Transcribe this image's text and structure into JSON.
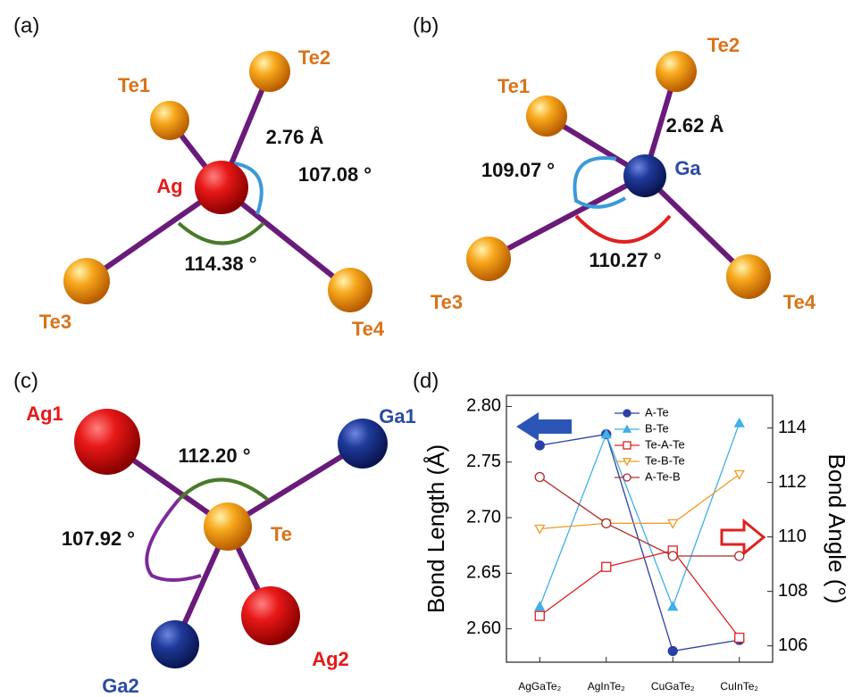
{
  "panels": [
    {
      "label": "(a)",
      "atoms": [
        "Te1",
        "Te2",
        "Ag",
        "Te3",
        "Te4"
      ],
      "bond_length": "2.76 Å",
      "angles": [
        "107.08 °",
        "114.38 °"
      ]
    },
    {
      "label": "(b)",
      "atoms": [
        "Te1",
        "Te2",
        "Ga",
        "Te3",
        "Te4"
      ],
      "bond_length": "2.62 Å",
      "angles": [
        "109.07 °",
        "110.27 °"
      ]
    },
    {
      "label": "(c)",
      "atoms": [
        "Ag1",
        "Ga1",
        "Te",
        "Ag2",
        "Ga2"
      ],
      "angles": [
        "112.20 °",
        "107.92 °"
      ]
    }
  ],
  "chart_data": {
    "type": "line",
    "panel_label": "(d)",
    "categories": [
      "AgGaTe₂",
      "AgInTe₂",
      "CuGaTe₂",
      "CuInTe₂"
    ],
    "ylabel": "Bond Length (Å)",
    "y2label": "Bond Angle (°)",
    "ylim": [
      2.57,
      2.81
    ],
    "yticks": [
      {
        "value": 2.6,
        "label": "2.60"
      },
      {
        "value": 2.65,
        "label": "2.65"
      },
      {
        "value": 2.7,
        "label": "2.70"
      },
      {
        "value": 2.75,
        "label": "2.75"
      },
      {
        "value": 2.8,
        "label": "2.80"
      }
    ],
    "y2lim": [
      105.4,
      115.2
    ],
    "y2ticks": [
      106,
      108,
      110,
      112,
      114
    ],
    "legend": "upper center",
    "series": [
      {
        "name": "A-Te",
        "color": "#2b3fa6",
        "marker": "circle",
        "filled": true,
        "values": [
          2.765,
          2.775,
          2.58,
          2.59
        ]
      },
      {
        "name": "B-Te",
        "color": "#3fb0e8",
        "marker": "triangle",
        "filled": true,
        "values": [
          2.62,
          2.775,
          2.62,
          2.785
        ]
      },
      {
        "name": "Te-A-Te",
        "color": "#e02020",
        "marker": "square",
        "filled": false,
        "axis": "y2",
        "values": [
          107.1,
          108.9,
          109.5,
          106.3
        ]
      },
      {
        "name": "Te-B-Te",
        "color": "#f29a1f",
        "marker": "triangle-down",
        "filled": false,
        "axis": "y2",
        "values": [
          110.3,
          110.5,
          110.5,
          112.3
        ]
      },
      {
        "name": "A-Te-B",
        "color": "#b02a2a",
        "marker": "circle",
        "filled": false,
        "axis": "y2",
        "values": [
          112.2,
          110.5,
          109.3,
          109.3
        ]
      }
    ]
  }
}
